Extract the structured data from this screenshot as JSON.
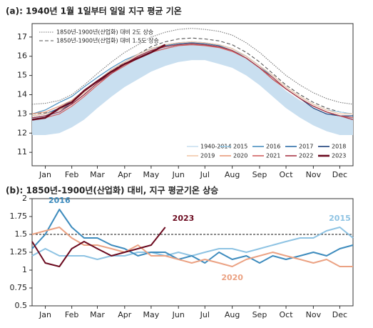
{
  "chart_data": [
    {
      "type": "line",
      "title": "(a): 1940년 1월 1일부터 일일 지구 평균 기온",
      "x": [
        1,
        16,
        32,
        46,
        60,
        75,
        91,
        106,
        121,
        136,
        152,
        167,
        182,
        197,
        213,
        228,
        244,
        259,
        274,
        289,
        305,
        320,
        335,
        350,
        365
      ],
      "xlim": [
        1,
        365
      ],
      "xticks": [
        {
          "value": 16,
          "label": "Jan"
        },
        {
          "value": 46,
          "label": "Feb"
        },
        {
          "value": 75,
          "label": "Mar"
        },
        {
          "value": 106,
          "label": "Apr"
        },
        {
          "value": 136,
          "label": "May"
        },
        {
          "value": 167,
          "label": "Jun"
        },
        {
          "value": 197,
          "label": "Jul"
        },
        {
          "value": 228,
          "label": "Aug"
        },
        {
          "value": 259,
          "label": "Sep"
        },
        {
          "value": 289,
          "label": "Oct"
        },
        {
          "value": 320,
          "label": "Nov"
        },
        {
          "value": 350,
          "label": "Dec"
        }
      ],
      "ylim": [
        10.3,
        17.7
      ],
      "yticks": [
        11,
        12,
        13,
        14,
        15,
        16,
        17
      ],
      "reference_lines": [
        {
          "name": "1850년-1900년(산업화) 대비 2도 상승",
          "style": "dotted",
          "color": "#777777",
          "values": [
            13.5,
            13.55,
            13.7,
            14.0,
            14.5,
            15.1,
            15.7,
            16.2,
            16.6,
            17.0,
            17.25,
            17.4,
            17.45,
            17.4,
            17.3,
            17.1,
            16.7,
            16.2,
            15.6,
            15.0,
            14.5,
            14.1,
            13.8,
            13.6,
            13.5
          ]
        },
        {
          "name": "1850년-1900년(산업화) 대비 1.5도 상승",
          "style": "dashed",
          "color": "#555555",
          "values": [
            13.0,
            13.05,
            13.2,
            13.5,
            14.0,
            14.6,
            15.2,
            15.7,
            16.1,
            16.5,
            16.75,
            16.9,
            16.95,
            16.9,
            16.8,
            16.6,
            16.2,
            15.7,
            15.1,
            14.5,
            14.0,
            13.6,
            13.3,
            13.1,
            13.0
          ]
        }
      ],
      "series": [
        {
          "name": "1940-2014",
          "color": "#c9dff0",
          "values": [
            11.9,
            11.9,
            12.0,
            12.3,
            12.7,
            13.3,
            13.9,
            14.4,
            14.8,
            15.2,
            15.5,
            15.7,
            15.8,
            15.8,
            15.6,
            15.4,
            15.0,
            14.5,
            13.9,
            13.3,
            12.8,
            12.4,
            12.1,
            11.9,
            11.9
          ],
          "upper": [
            12.8,
            12.9,
            13.1,
            13.4,
            13.9,
            14.5,
            15.1,
            15.6,
            16.0,
            16.3,
            16.5,
            16.6,
            16.65,
            16.6,
            16.5,
            16.3,
            15.9,
            15.4,
            14.8,
            14.2,
            13.7,
            13.3,
            13.0,
            12.9,
            12.8
          ]
        },
        {
          "name": "2015",
          "color": "#9ccbe6",
          "values": [
            12.8,
            12.9,
            13.1,
            13.5,
            14.0,
            14.6,
            15.2,
            15.6,
            16.0,
            16.3,
            16.5,
            16.6,
            16.6,
            16.6,
            16.5,
            16.3,
            16.0,
            15.5,
            15.0,
            14.4,
            13.9,
            13.5,
            13.2,
            13.1,
            13.0
          ]
        },
        {
          "name": "2016",
          "color": "#4a90c0",
          "values": [
            13.0,
            13.2,
            13.6,
            13.9,
            14.4,
            14.9,
            15.4,
            15.8,
            16.1,
            16.4,
            16.6,
            16.7,
            16.75,
            16.7,
            16.6,
            16.4,
            16.0,
            15.5,
            14.9,
            14.3,
            13.8,
            13.4,
            13.1,
            12.9,
            12.8
          ]
        },
        {
          "name": "2017",
          "color": "#2f6ea8",
          "values": [
            12.9,
            13.0,
            13.3,
            13.7,
            14.2,
            14.7,
            15.3,
            15.7,
            16.1,
            16.4,
            16.55,
            16.65,
            16.7,
            16.65,
            16.55,
            16.3,
            15.9,
            15.4,
            14.8,
            14.3,
            13.8,
            13.4,
            13.1,
            12.9,
            12.8
          ]
        },
        {
          "name": "2018",
          "color": "#1a3f7a",
          "values": [
            12.8,
            12.9,
            13.2,
            13.5,
            14.0,
            14.6,
            15.2,
            15.6,
            16.0,
            16.3,
            16.5,
            16.6,
            16.65,
            16.6,
            16.5,
            16.3,
            15.9,
            15.4,
            14.8,
            14.3,
            13.8,
            13.3,
            13.0,
            12.9,
            12.9
          ]
        },
        {
          "name": "2019",
          "color": "#f2c8a8",
          "values": [
            12.9,
            13.0,
            13.2,
            13.6,
            14.1,
            14.7,
            15.3,
            15.7,
            16.1,
            16.4,
            16.6,
            16.7,
            16.75,
            16.7,
            16.6,
            16.4,
            16.0,
            15.5,
            15.0,
            14.4,
            13.9,
            13.5,
            13.2,
            13.0,
            13.0
          ]
        },
        {
          "name": "2020",
          "color": "#e89a7a",
          "values": [
            13.0,
            13.1,
            13.4,
            13.7,
            14.2,
            14.7,
            15.2,
            15.6,
            16.0,
            16.3,
            16.5,
            16.6,
            16.65,
            16.6,
            16.5,
            16.3,
            15.9,
            15.4,
            14.8,
            14.3,
            13.8,
            13.4,
            13.1,
            12.9,
            12.8
          ]
        },
        {
          "name": "2021",
          "color": "#d06060",
          "values": [
            12.7,
            12.8,
            13.0,
            13.4,
            13.9,
            14.5,
            15.1,
            15.5,
            15.9,
            16.2,
            16.4,
            16.55,
            16.6,
            16.55,
            16.45,
            16.25,
            15.9,
            15.4,
            14.8,
            14.3,
            13.8,
            13.4,
            13.1,
            12.9,
            12.8
          ]
        },
        {
          "name": "2022",
          "color": "#a83848",
          "values": [
            12.8,
            12.9,
            13.1,
            13.5,
            14.0,
            14.6,
            15.1,
            15.6,
            16.0,
            16.3,
            16.5,
            16.6,
            16.65,
            16.6,
            16.5,
            16.3,
            15.9,
            15.4,
            14.9,
            14.3,
            13.8,
            13.4,
            13.1,
            12.9,
            12.7
          ]
        },
        {
          "name": "2023",
          "color": "#6b0a1f",
          "values": [
            12.7,
            12.8,
            13.3,
            13.6,
            14.2,
            14.7,
            15.2,
            15.6,
            15.9,
            16.2,
            16.6,
            null,
            null,
            null,
            null,
            null,
            null,
            null,
            null,
            null,
            null,
            null,
            null,
            null,
            null
          ]
        }
      ]
    },
    {
      "type": "line",
      "title": "(b): 1850년-1900년(산업화) 대비, 지구 평균기온 상승",
      "x": [
        1,
        16,
        32,
        46,
        60,
        75,
        91,
        106,
        121,
        136,
        152,
        167,
        182,
        197,
        213,
        228,
        244,
        259,
        274,
        289,
        305,
        320,
        335,
        350,
        365
      ],
      "xlim": [
        1,
        365
      ],
      "xticks": [
        {
          "value": 16,
          "label": "Jan"
        },
        {
          "value": 46,
          "label": "Feb"
        },
        {
          "value": 75,
          "label": "Mar"
        },
        {
          "value": 106,
          "label": "Apr"
        },
        {
          "value": 136,
          "label": "May"
        },
        {
          "value": 167,
          "label": "Jun"
        },
        {
          "value": 197,
          "label": "Jul"
        },
        {
          "value": 228,
          "label": "Aug"
        },
        {
          "value": 259,
          "label": "Sep"
        },
        {
          "value": 289,
          "label": "Oct"
        },
        {
          "value": 320,
          "label": "Nov"
        },
        {
          "value": 350,
          "label": "Dec"
        }
      ],
      "ylim": [
        0.5,
        2
      ],
      "yticks": [
        0.5,
        0.75,
        1,
        1.25,
        1.5,
        1.75,
        2
      ],
      "hline": 1.5,
      "series": [
        {
          "name": "2015",
          "color": "#8ec3e3",
          "label_at": 23,
          "values": [
            1.2,
            1.3,
            1.2,
            1.2,
            1.2,
            1.15,
            1.2,
            1.2,
            1.25,
            1.25,
            1.2,
            1.25,
            1.2,
            1.25,
            1.3,
            1.3,
            1.25,
            1.3,
            1.35,
            1.4,
            1.45,
            1.45,
            1.55,
            1.6,
            1.45
          ]
        },
        {
          "name": "2016",
          "color": "#3d8bbd",
          "label_at": 2,
          "values": [
            1.3,
            1.5,
            1.85,
            1.6,
            1.45,
            1.45,
            1.35,
            1.3,
            1.2,
            1.25,
            1.25,
            1.15,
            1.2,
            1.1,
            1.25,
            1.15,
            1.2,
            1.1,
            1.2,
            1.15,
            1.2,
            1.25,
            1.2,
            1.3,
            1.35
          ]
        },
        {
          "name": "2020",
          "color": "#eba283",
          "label_at": 15,
          "values": [
            1.5,
            1.55,
            1.6,
            1.45,
            1.35,
            1.35,
            1.3,
            1.25,
            1.35,
            1.2,
            1.2,
            1.15,
            1.1,
            1.15,
            1.1,
            1.05,
            1.15,
            1.2,
            1.25,
            1.2,
            1.15,
            1.1,
            1.15,
            1.05,
            1.05
          ]
        },
        {
          "name": "2023",
          "color": "#6b0a1f",
          "label_at": 10,
          "values": [
            1.4,
            1.1,
            1.05,
            1.3,
            1.4,
            1.3,
            1.2,
            1.25,
            1.3,
            1.35,
            1.6,
            null,
            null,
            null,
            null,
            null,
            null,
            null,
            null,
            null,
            null,
            null,
            null,
            null,
            null
          ]
        }
      ]
    }
  ]
}
